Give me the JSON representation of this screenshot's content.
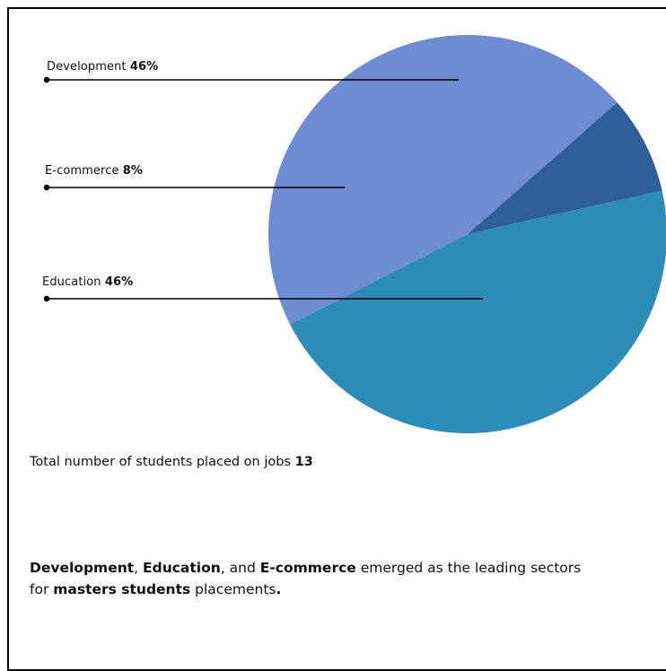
{
  "chart_data": {
    "type": "pie",
    "slices": [
      {
        "label": "Development",
        "value": 46,
        "value_label": "46%",
        "color": "#6e8cd4"
      },
      {
        "label": "E-commerce",
        "value": 8,
        "value_label": "8%",
        "color": "#2e5f99"
      },
      {
        "label": "Education",
        "value": 46,
        "value_label": "46%",
        "color": "#2e8cb9"
      }
    ]
  },
  "total": {
    "label": "Total number of students placed on jobs",
    "value": "13"
  },
  "summary": {
    "s1": "Development",
    "s2": ", ",
    "s3": "Education",
    "s4": ", and ",
    "s5": "E-commerce",
    "s6": " emerged as the leading sectors for ",
    "s7": "masters students",
    "s8": " placements",
    "s9": "."
  }
}
